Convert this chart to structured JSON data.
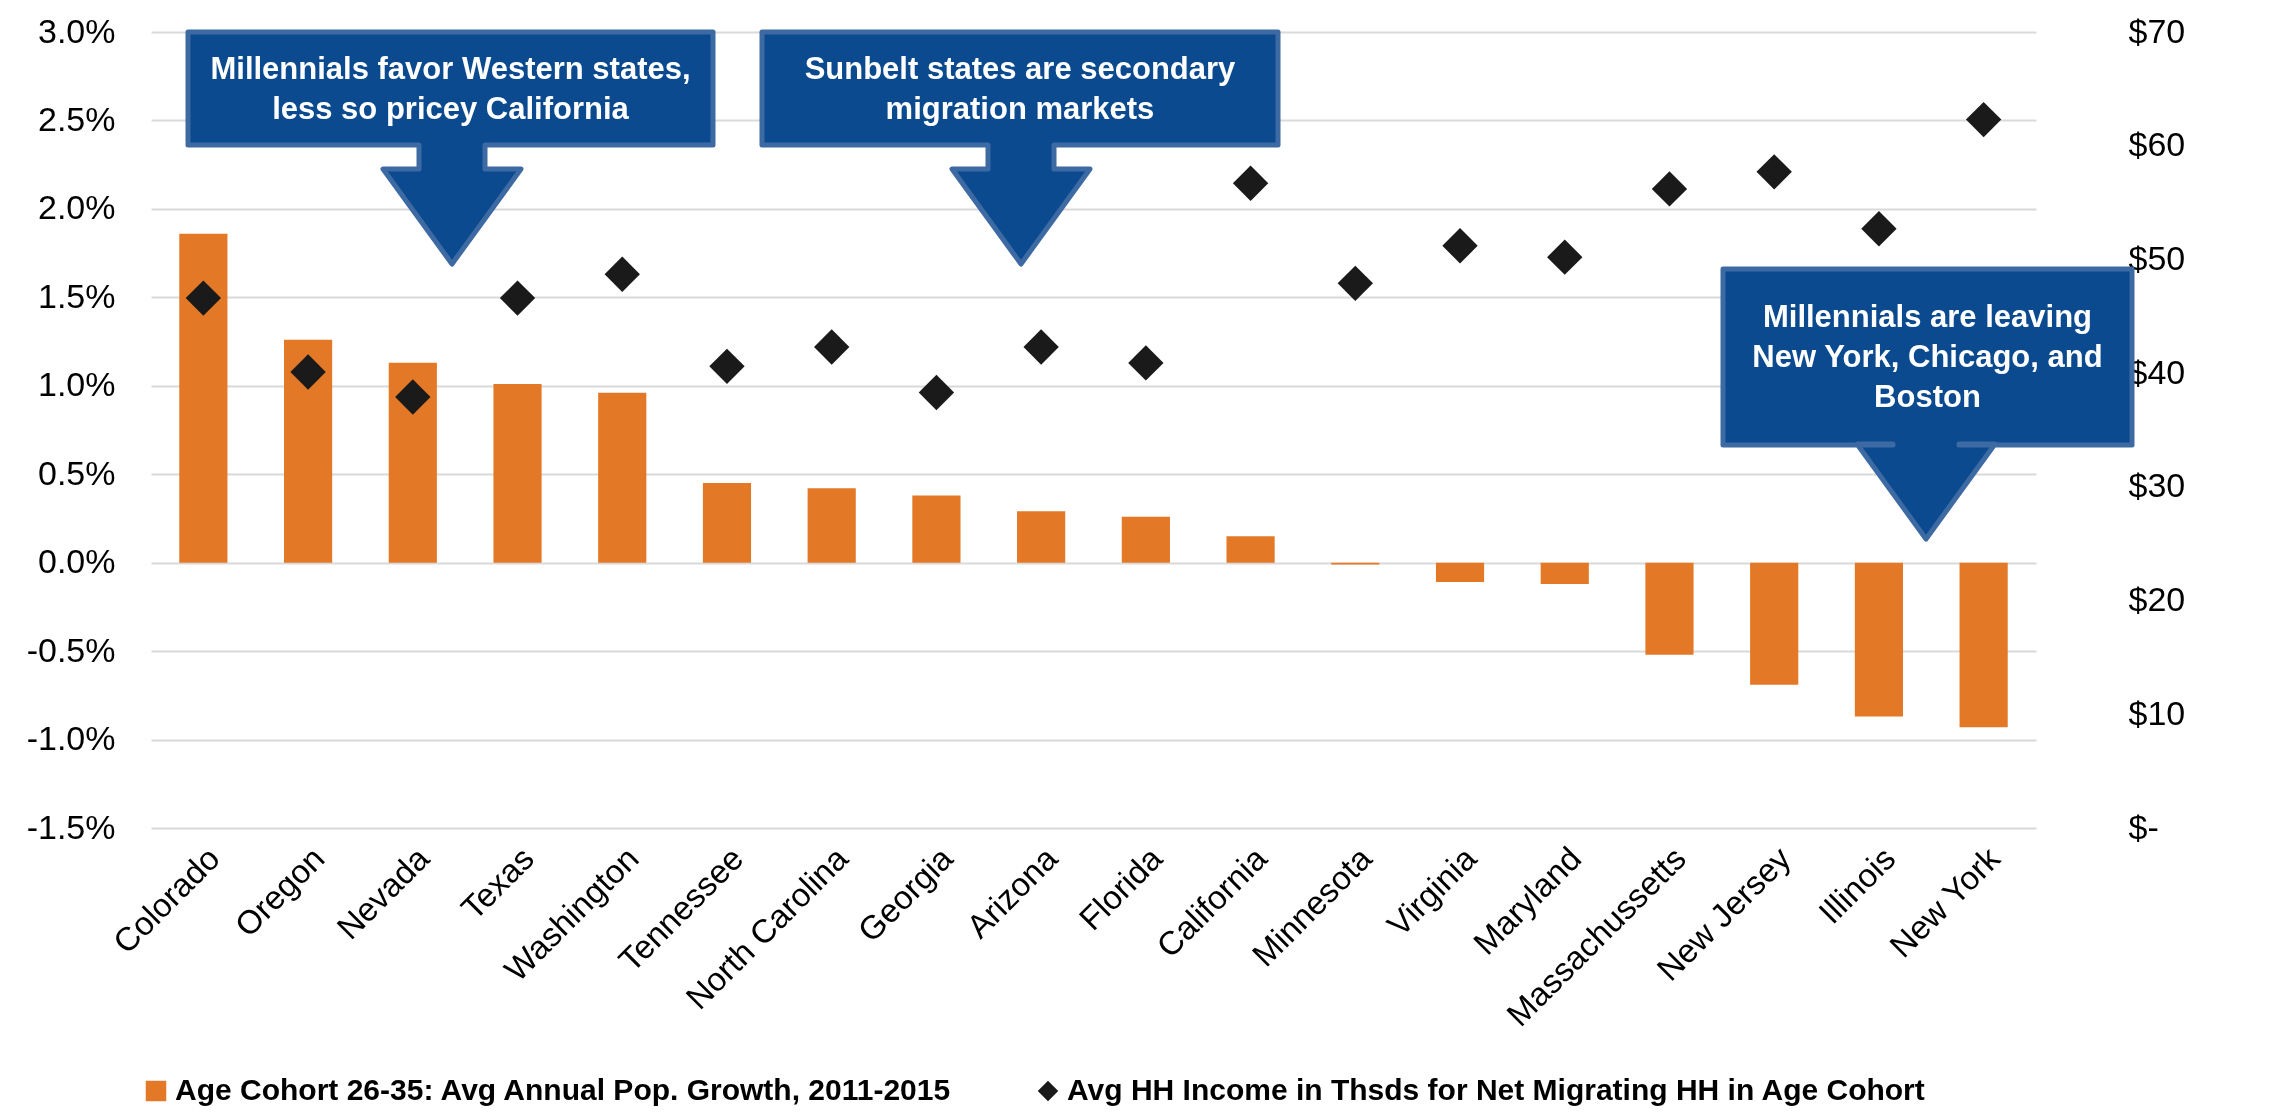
{
  "chart_data": {
    "type": "bar",
    "categories": [
      "Colorado",
      "Oregon",
      "Nevada",
      "Texas",
      "Washington",
      "Tennessee",
      "North Carolina",
      "Georgia",
      "Arizona",
      "Florida",
      "California",
      "Minnesota",
      "Virginia",
      "Maryland",
      "Massachussetts",
      "New Jersey",
      "Illinois",
      "New York"
    ],
    "series": [
      {
        "name": "Age Cohort 26-35: Avg Annual Pop. Growth, 2011-2015",
        "color": "#e37826",
        "values": [
          1.86,
          1.26,
          1.13,
          1.01,
          0.96,
          0.45,
          0.42,
          0.38,
          0.29,
          0.26,
          0.15,
          -0.01,
          -0.11,
          -0.12,
          -0.52,
          -0.69,
          -0.87,
          -0.93
        ]
      },
      {
        "name": "Avg HH Income in Thsds for Net Migrating HH in Age Cohort",
        "type": "scatter",
        "axis": "y2",
        "marker": "diamond",
        "color": "#1a1a1a",
        "values": [
          46.6,
          40.1,
          37.9,
          46.6,
          48.7,
          40.6,
          42.3,
          38.3,
          42.3,
          40.9,
          56.7,
          47.9,
          51.2,
          50.2,
          56.2,
          57.7,
          52.7,
          62.3
        ]
      }
    ],
    "ylim": [
      -1.5,
      3.0
    ],
    "yticks": [
      {
        "value": -1.5,
        "label": "-1.5%"
      },
      {
        "value": -1.0,
        "label": "-1.0%"
      },
      {
        "value": -0.5,
        "label": "-0.5%"
      },
      {
        "value": 0,
        "label": "0.0%"
      },
      {
        "value": 0.5,
        "label": "0.5%"
      },
      {
        "value": 1.0,
        "label": "1.0%"
      },
      {
        "value": 1.5,
        "label": "1.5%"
      },
      {
        "value": 2.0,
        "label": "2.0%"
      },
      {
        "value": 2.5,
        "label": "2.5%"
      },
      {
        "value": 3.0,
        "label": "3.0%"
      }
    ],
    "y2lim": [
      0,
      70
    ],
    "y2ticks": [
      {
        "value": 0,
        "label": "$-"
      },
      {
        "value": 10,
        "label": "$10"
      },
      {
        "value": 20,
        "label": "$20"
      },
      {
        "value": 30,
        "label": "$30"
      },
      {
        "value": 40,
        "label": "$40"
      },
      {
        "value": 50,
        "label": "$50"
      },
      {
        "value": 60,
        "label": "$60"
      },
      {
        "value": 70,
        "label": "$70"
      }
    ],
    "grid": "y",
    "legend": "bottom",
    "annotations": [
      "Millennials favor Western states, less so pricey California",
      "Sunbelt states are secondary migration markets",
      "Millennials are leaving New York, Chicago, and Boston"
    ]
  }
}
